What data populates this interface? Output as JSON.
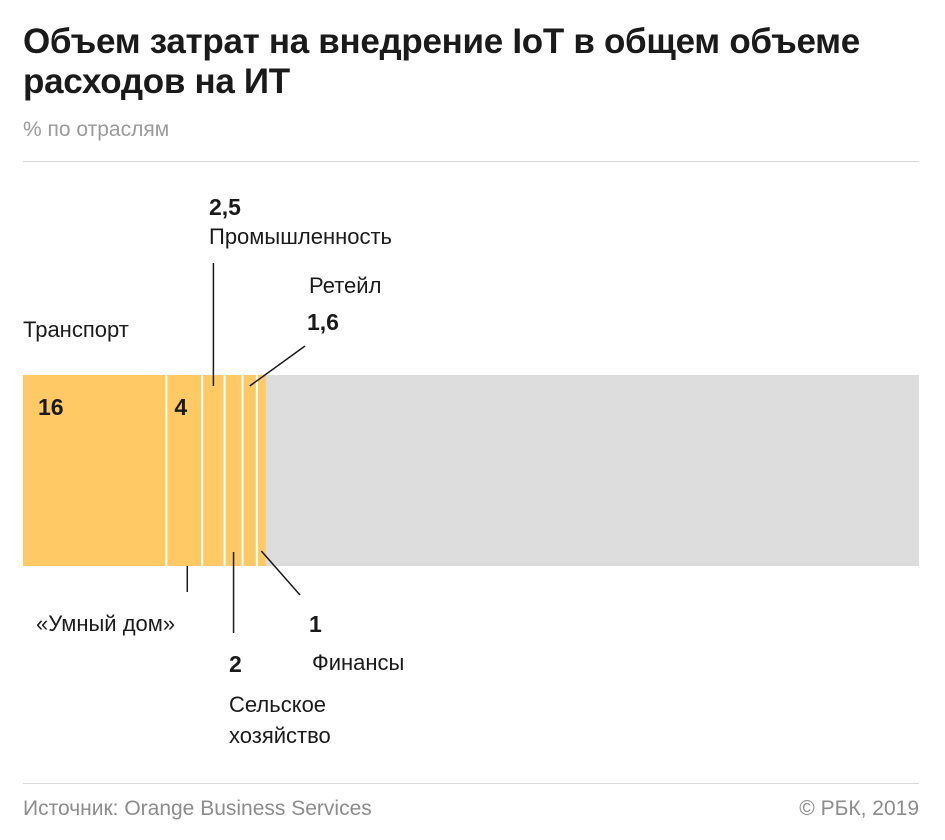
{
  "header": {
    "title": "Объем затрат на внедрение IoT в общем объеме расходов на ИТ",
    "subtitle": "% по отраслям"
  },
  "footer": {
    "source": "Источник: Orange Business Services",
    "copyright": "© РБК, 2019"
  },
  "colors": {
    "segment": "#ffc965",
    "divider": "#ffffff",
    "remainder": "#dddddd",
    "leader": "#1a1a1a"
  },
  "chart_data": {
    "type": "bar",
    "orientation": "horizontal",
    "stacked": true,
    "scale_max": 100,
    "categories": [
      "Транспорт",
      "«Умный дом»",
      "Промышленность",
      "Сельское хозяйство",
      "Ретейл",
      "Финансы"
    ],
    "series": [
      {
        "values": [
          16,
          4,
          2.5,
          2,
          1.6,
          1
        ],
        "value_labels": [
          "16",
          "4",
          "2,5",
          "2",
          "1,6",
          "1"
        ]
      }
    ],
    "remainder_category": "",
    "legend": "none",
    "grid": false
  }
}
